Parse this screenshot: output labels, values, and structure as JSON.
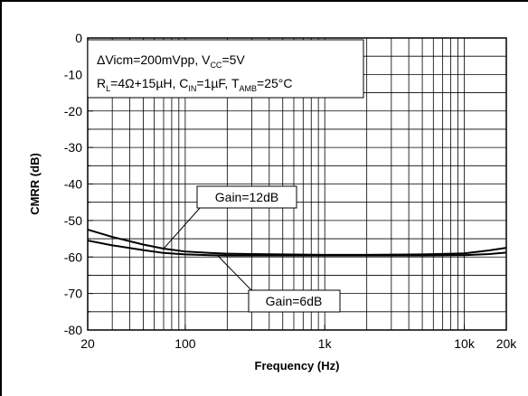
{
  "chart_data": {
    "type": "line",
    "xlabel": "Frequency (Hz)",
    "ylabel": "CMRR (dB)",
    "xscale": "log",
    "xlim": [
      20,
      20000
    ],
    "ylim": [
      -80,
      0
    ],
    "grid": true,
    "x_ticks": [
      {
        "value": 20,
        "label": "20"
      },
      {
        "value": 100,
        "label": "100"
      },
      {
        "value": 1000,
        "label": "1k"
      },
      {
        "value": 10000,
        "label": "10k"
      },
      {
        "value": 20000,
        "label": "20k"
      }
    ],
    "y_ticks": [
      {
        "value": 0,
        "label": "0"
      },
      {
        "value": -10,
        "label": "-10"
      },
      {
        "value": -20,
        "label": "-20"
      },
      {
        "value": -30,
        "label": "-30"
      },
      {
        "value": -40,
        "label": "-40"
      },
      {
        "value": -50,
        "label": "-50"
      },
      {
        "value": -60,
        "label": "-60"
      },
      {
        "value": -70,
        "label": "-70"
      },
      {
        "value": -80,
        "label": "-80"
      }
    ],
    "conditions": {
      "line1": {
        "p1": "ΔVicm=200mVpp, V",
        "p1_sub": "CC",
        "p2": "=5V"
      },
      "line2": {
        "p1": "R",
        "p1_sub": "L",
        "p2": "=4Ω+15µH, C",
        "p2_sub": "IN",
        "p3": "=1µF, T",
        "p3_sub": "AMB",
        "p4": "=25°C"
      }
    },
    "series": [
      {
        "name": "Gain=12dB",
        "color": "#000000",
        "x": [
          20,
          30,
          50,
          70,
          100,
          150,
          200,
          300,
          500,
          1000,
          2000,
          5000,
          10000,
          15000,
          20000
        ],
        "y": [
          -52.5,
          -54.5,
          -56.6,
          -57.7,
          -58.5,
          -58.9,
          -59.1,
          -59.2,
          -59.3,
          -59.4,
          -59.4,
          -59.3,
          -59.0,
          -58.2,
          -57.5
        ]
      },
      {
        "name": "Gain=6dB",
        "color": "#000000",
        "x": [
          20,
          30,
          50,
          70,
          100,
          150,
          200,
          300,
          500,
          1000,
          2000,
          5000,
          10000,
          15000,
          20000
        ],
        "y": [
          -55.5,
          -56.8,
          -58.1,
          -58.9,
          -59.3,
          -59.5,
          -59.6,
          -59.6,
          -59.6,
          -59.6,
          -59.6,
          -59.6,
          -59.5,
          -59.2,
          -58.8
        ]
      }
    ],
    "annotations": [
      {
        "text": "Gain=12dB",
        "series": 0
      },
      {
        "text": "Gain=6dB",
        "series": 1
      }
    ]
  }
}
